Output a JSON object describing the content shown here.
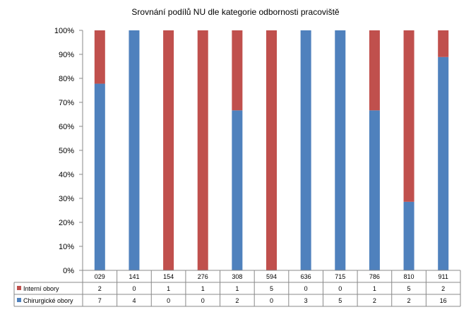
{
  "chart_data": {
    "type": "bar",
    "stacked": "percent",
    "title": "Srovnání podílů NU  dle kategorie odbornosti pracoviště",
    "categories": [
      "029",
      "141",
      "154",
      "276",
      "308",
      "594",
      "636",
      "715",
      "786",
      "810",
      "911"
    ],
    "series": [
      {
        "name": "Interní obory",
        "color": "#C0504D",
        "values": [
          2,
          0,
          1,
          1,
          1,
          5,
          0,
          0,
          1,
          5,
          2
        ]
      },
      {
        "name": "Chirurgické obory",
        "color": "#4F81BD",
        "values": [
          7,
          4,
          0,
          0,
          2,
          0,
          3,
          5,
          2,
          2,
          16
        ]
      }
    ],
    "y_ticks": [
      "0%",
      "10%",
      "20%",
      "30%",
      "40%",
      "50%",
      "60%",
      "70%",
      "80%",
      "90%",
      "100%"
    ],
    "ylim": [
      0,
      100
    ],
    "grid": false,
    "legend": "data table, left"
  }
}
